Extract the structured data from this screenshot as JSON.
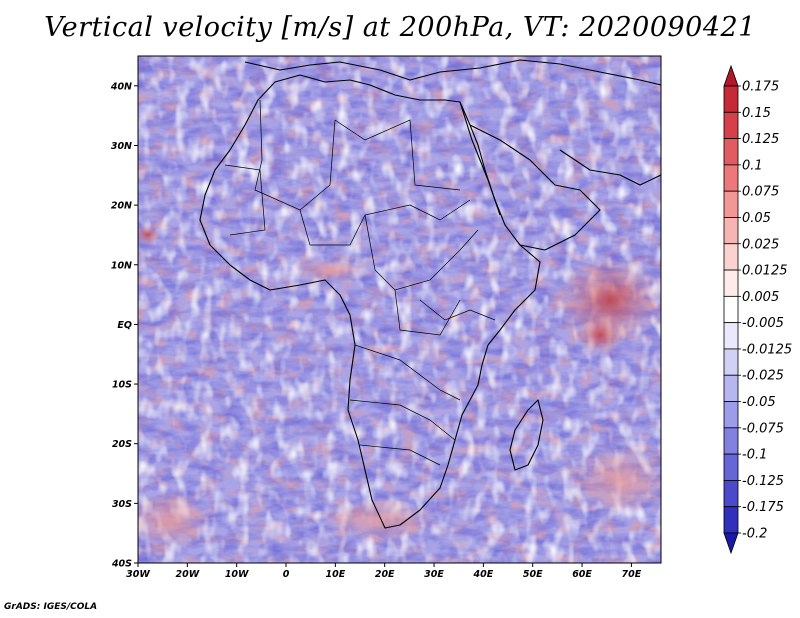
{
  "title": "Vertical velocity [m/s] at 200hPa, VT: 2020090421",
  "footer": "GrADS: IGES/COLA",
  "chart_data": {
    "type": "heatmap",
    "title": "Vertical velocity [m/s] at 200hPa, VT: 2020090421",
    "variable": "Vertical velocity",
    "units": "m/s",
    "level": "200hPa",
    "valid_time": "2020090421",
    "xlabel": "",
    "ylabel": "",
    "xlim": [
      -30,
      76
    ],
    "ylim": [
      -40,
      45
    ],
    "x_ticks": [
      {
        "value": -30,
        "label": "30W"
      },
      {
        "value": -20,
        "label": "20W"
      },
      {
        "value": -10,
        "label": "10W"
      },
      {
        "value": 0,
        "label": "0"
      },
      {
        "value": 10,
        "label": "10E"
      },
      {
        "value": 20,
        "label": "20E"
      },
      {
        "value": 30,
        "label": "30E"
      },
      {
        "value": 40,
        "label": "40E"
      },
      {
        "value": 50,
        "label": "50E"
      },
      {
        "value": 60,
        "label": "60E"
      },
      {
        "value": 70,
        "label": "70E"
      }
    ],
    "y_ticks": [
      {
        "value": 40,
        "label": "40N"
      },
      {
        "value": 30,
        "label": "30N"
      },
      {
        "value": 20,
        "label": "20N"
      },
      {
        "value": 10,
        "label": "10N"
      },
      {
        "value": 0,
        "label": "EQ"
      },
      {
        "value": -10,
        "label": "10S"
      },
      {
        "value": -20,
        "label": "20S"
      },
      {
        "value": -30,
        "label": "30S"
      },
      {
        "value": -40,
        "label": "40S"
      }
    ],
    "colorbar": {
      "labels": [
        "0.175",
        "0.15",
        "0.125",
        "0.1",
        "0.075",
        "0.05",
        "0.025",
        "0.0125",
        "0.005",
        "-0.005",
        "-0.0125",
        "-0.025",
        "-0.05",
        "-0.075",
        "-0.1",
        "-0.125",
        "-0.175",
        "-0.2"
      ],
      "colors": [
        "#b2182b",
        "#c52a36",
        "#d6404a",
        "#e35b62",
        "#ec787c",
        "#f29696",
        "#f6b4b2",
        "#fad2d0",
        "#fdecea",
        "#ffffff",
        "#e9e9fb",
        "#d1d1f5",
        "#b7b7ef",
        "#9c9ce8",
        "#8181e0",
        "#6666d7",
        "#4a4acb",
        "#3030bd",
        "#1a1aa8"
      ]
    },
    "grid": false
  },
  "map": {
    "fill_colors": {
      "base": "#a9a4e6",
      "positive": "#e99a9a",
      "strong_positive": "#c23a40",
      "negative": "#6f6ad6",
      "near_zero": "#ffffff",
      "coast": "#000000"
    }
  }
}
